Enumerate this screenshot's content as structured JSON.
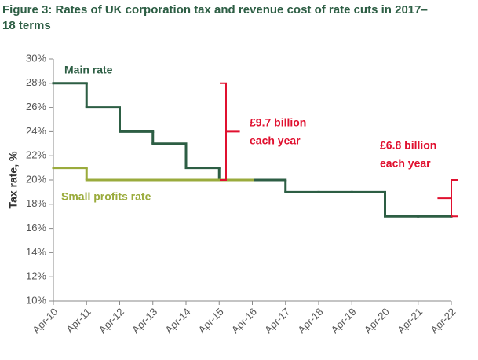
{
  "chart_data": {
    "type": "step",
    "title": [
      "Figure 3: Rates of UK corporation tax and revenue cost of rate cuts in 2017–",
      "18 terms"
    ],
    "y_label": "Tax rate, %",
    "categories": [
      "Apr-10",
      "Apr-11",
      "Apr-12",
      "Apr-13",
      "Apr-14",
      "Apr-15",
      "Apr-16",
      "Apr-17",
      "Apr-18",
      "Apr-19",
      "Apr-20",
      "Apr-21",
      "Apr-22"
    ],
    "series": [
      {
        "name": "Main rate",
        "color": "#2d5e44",
        "values": [
          28,
          26,
          24,
          23,
          21,
          20,
          20,
          19,
          19,
          19,
          17,
          17,
          17
        ]
      },
      {
        "name": "Small profits rate",
        "color": "#9aab3c",
        "values": [
          21,
          20,
          20,
          20,
          20,
          20,
          20,
          null,
          null,
          null,
          null,
          null,
          null
        ]
      }
    ],
    "ylim": [
      10,
      30
    ],
    "yticks": [
      {
        "value": 10,
        "label": "10%"
      },
      {
        "value": 12,
        "label": "12%"
      },
      {
        "value": 14,
        "label": "14%"
      },
      {
        "value": 16,
        "label": "16%"
      },
      {
        "value": 18,
        "label": "18%"
      },
      {
        "value": 20,
        "label": "20%"
      },
      {
        "value": 22,
        "label": "22%"
      },
      {
        "value": 24,
        "label": "24%"
      },
      {
        "value": 26,
        "label": "26%"
      },
      {
        "value": 28,
        "label": "28%"
      },
      {
        "value": 30,
        "label": "30%"
      }
    ],
    "grid": false,
    "annotations": [
      {
        "lines": [
          "£9.7 billion",
          "each year"
        ],
        "color": "#e0102f",
        "from": 20,
        "to": 28
      },
      {
        "lines": [
          "£6.8 billion",
          "each year"
        ],
        "color": "#e0102f",
        "from": 17,
        "to": 20
      }
    ]
  }
}
